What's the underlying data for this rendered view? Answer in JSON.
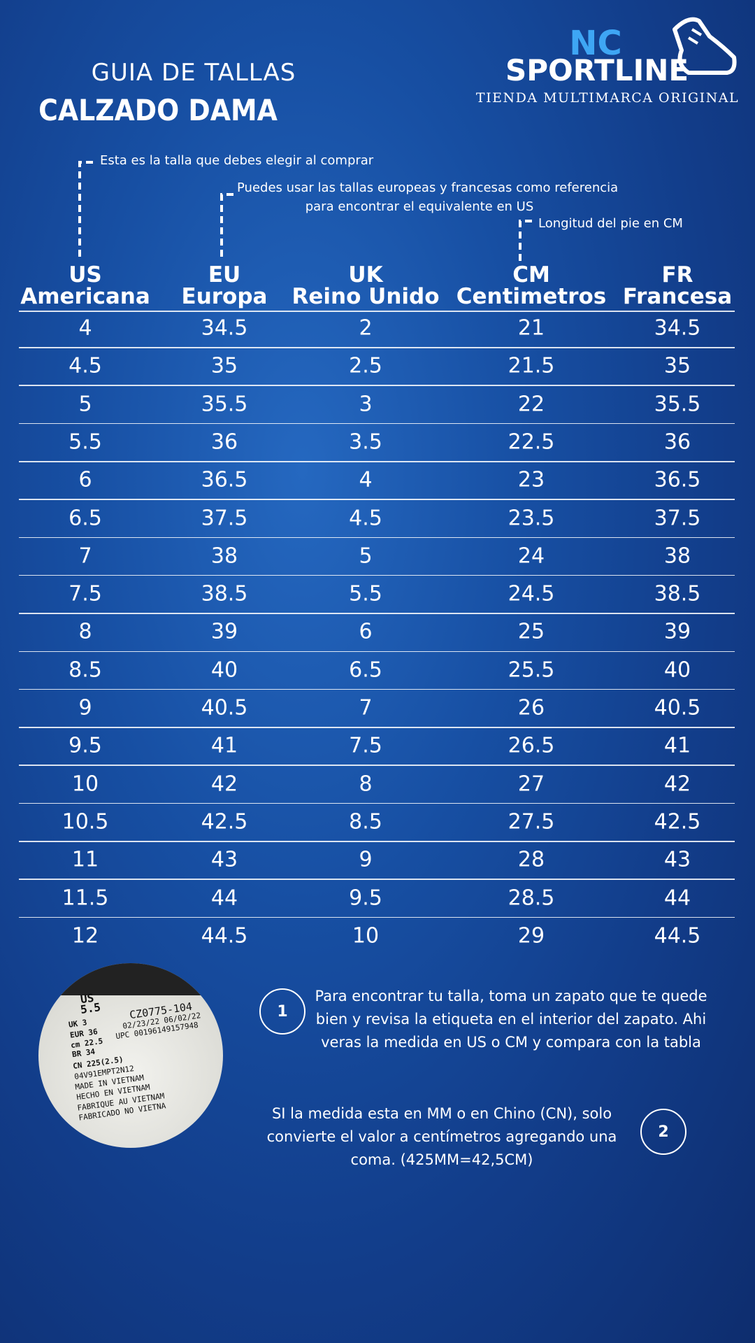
{
  "header": {
    "kicker": "GUIA DE TALLAS",
    "title": "CALZADO DAMA"
  },
  "brand": {
    "initials": "NC",
    "name": "SPORTLINE",
    "tagline": "TIENDA MULTIMARCA ORIGINAL"
  },
  "annotations": [
    {
      "lines": [
        "Esta es la talla que debes elegir al comprar"
      ]
    },
    {
      "lines": [
        "Puedes usar las tallas europeas y francesas como referencia",
        "para encontrar el equivalente en US"
      ]
    },
    {
      "lines": [
        "Longitud del pie en CM"
      ]
    }
  ],
  "table": {
    "columns": [
      {
        "code": "US",
        "name": "Americana"
      },
      {
        "code": "EU",
        "name": "Europa"
      },
      {
        "code": "UK",
        "name": "Reino Unido"
      },
      {
        "code": "CM",
        "name": "Centimetros"
      },
      {
        "code": "FR",
        "name": "Francesa"
      }
    ],
    "rows": [
      [
        "4",
        "34.5",
        "2",
        "21",
        "34.5"
      ],
      [
        "4.5",
        "35",
        "2.5",
        "21.5",
        "35"
      ],
      [
        "5",
        "35.5",
        "3",
        "22",
        "35.5"
      ],
      [
        "5.5",
        "36",
        "3.5",
        "22.5",
        "36"
      ],
      [
        "6",
        "36.5",
        "4",
        "23",
        "36.5"
      ],
      [
        "6.5",
        "37.5",
        "4.5",
        "23.5",
        "37.5"
      ],
      [
        "7",
        "38",
        "5",
        "24",
        "38"
      ],
      [
        "7.5",
        "38.5",
        "5.5",
        "24.5",
        "38.5"
      ],
      [
        "8",
        "39",
        "6",
        "25",
        "39"
      ],
      [
        "8.5",
        "40",
        "6.5",
        "25.5",
        "40"
      ],
      [
        "9",
        "40.5",
        "7",
        "26",
        "40.5"
      ],
      [
        "9.5",
        "41",
        "7.5",
        "26.5",
        "41"
      ],
      [
        "10",
        "42",
        "8",
        "27",
        "42"
      ],
      [
        "10.5",
        "42.5",
        "8.5",
        "27.5",
        "42.5"
      ],
      [
        "11",
        "43",
        "9",
        "28",
        "43"
      ],
      [
        "11.5",
        "44",
        "9.5",
        "28.5",
        "44"
      ],
      [
        "12",
        "44.5",
        "10",
        "29",
        "44.5"
      ]
    ]
  },
  "label_photo": {
    "lines": [
      "US",
      "5.5",
      "UK 3",
      "EUR 36",
      "cm 22.5",
      "BR 34",
      "CN 225(2.5)",
      "04V91EMPT2N12",
      "MADE IN VIETNAM",
      "HECHO EN VIETNAM",
      "FABRIQUE AU VIETNAM",
      "FABRICADO NO VIETNA"
    ],
    "code_lines": [
      "CZ0775-104",
      "02/23/22 06/02/22",
      "UPC 00196149157948"
    ]
  },
  "steps": [
    {
      "number": "1",
      "lines": [
        "Para encontrar tu talla, toma un zapato que te quede",
        "bien y revisa la etiqueta en el interior del zapato. Ahi",
        "veras la medida en US o CM y compara con la tabla"
      ]
    },
    {
      "number": "2",
      "lines": [
        "SI la medida esta en MM o en Chino (CN), solo",
        "convierte el valor a centímetros agregando una",
        "coma. (425MM=42,5CM)"
      ]
    }
  ]
}
